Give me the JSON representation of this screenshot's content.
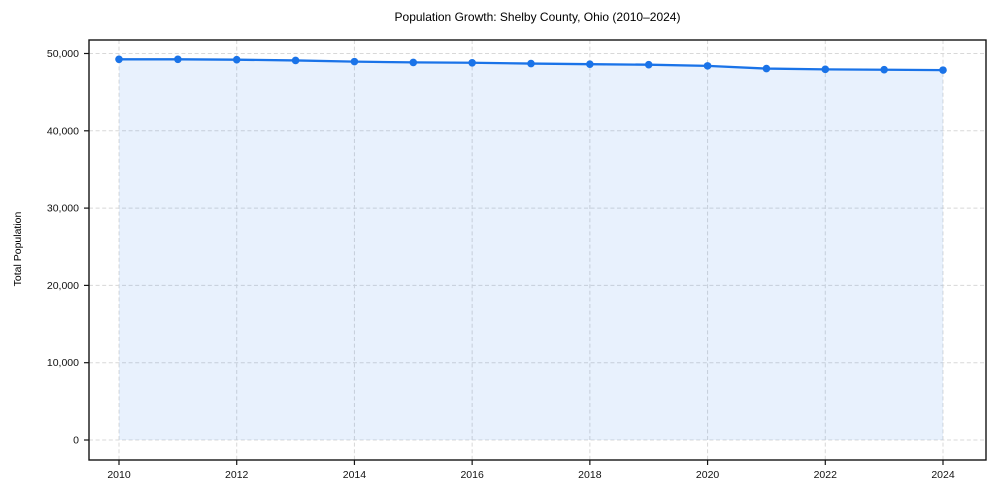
{
  "chart_data": {
    "type": "line",
    "title": "Population Growth: Shelby County, Ohio (2010–2024)",
    "xlabel": "",
    "ylabel": "Total Population",
    "x": [
      2010,
      2011,
      2012,
      2013,
      2014,
      2015,
      2016,
      2017,
      2018,
      2019,
      2020,
      2021,
      2022,
      2023,
      2024
    ],
    "values": [
      49250,
      49250,
      49200,
      49100,
      48950,
      48850,
      48800,
      48700,
      48620,
      48550,
      48400,
      48050,
      47950,
      47900,
      47850
    ],
    "series_name": "Total Population",
    "xlim": [
      2010,
      2024
    ],
    "ylim": [
      0,
      50000
    ],
    "xticks": [
      2010,
      2012,
      2014,
      2016,
      2018,
      2020,
      2022,
      2024
    ],
    "ytick_values": [
      0,
      10000,
      20000,
      30000,
      40000,
      50000
    ],
    "ytick_labels": [
      "0",
      "10,000",
      "20,000",
      "30,000",
      "40,000",
      "50,000"
    ],
    "grid": true,
    "grid_style": "dashed",
    "legend": false,
    "marker": "circle",
    "area_fill": true,
    "colors": {
      "line": "#1a73e8",
      "marker": "#1a73e8",
      "fill": "#1a73e8",
      "fill_opacity": 0.1,
      "grid": "#d8d8d8",
      "spine": "#141414",
      "tick_text": "#111111",
      "background": "#ffffff"
    }
  }
}
